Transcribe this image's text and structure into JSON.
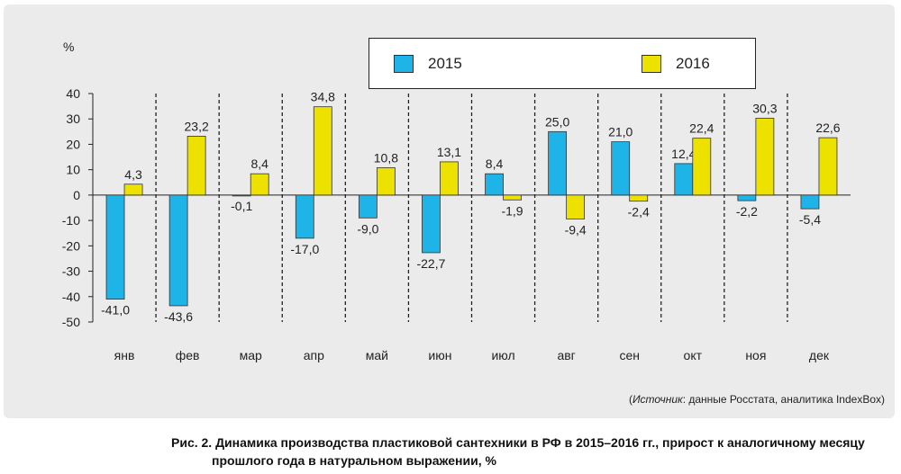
{
  "chart_data": {
    "type": "bar",
    "unit_label": "%",
    "categories": [
      "янв",
      "фев",
      "мар",
      "апр",
      "май",
      "июн",
      "июл",
      "авг",
      "сен",
      "окт",
      "ноя",
      "дек"
    ],
    "series": [
      {
        "name": "2015",
        "color": "#1eb4e8",
        "values": [
          -41.0,
          -43.6,
          -0.1,
          -17.0,
          -9.0,
          -22.7,
          8.4,
          25.0,
          21.0,
          12.4,
          -2.2,
          -5.4
        ],
        "labels": [
          "-41,0",
          "-43,6",
          "-0,1",
          "-17,0",
          "-9,0",
          "-22,7",
          "8,4",
          "25,0",
          "21,0",
          "12,4",
          "-2,2",
          "-5,4"
        ]
      },
      {
        "name": "2016",
        "color": "#ede100",
        "values": [
          4.3,
          23.2,
          8.4,
          34.8,
          10.8,
          13.1,
          -1.9,
          -9.4,
          -2.4,
          22.4,
          30.3,
          22.6
        ],
        "labels": [
          "4,3",
          "23,2",
          "8,4",
          "34,8",
          "10,8",
          "13,1",
          "-1,9",
          "-9,4",
          "-2,4",
          "22,4",
          "30,3",
          "22,6"
        ]
      }
    ],
    "ylim": [
      -50,
      40
    ],
    "yticks": [
      40,
      30,
      20,
      10,
      0,
      -10,
      -20,
      -30,
      -40,
      -50
    ],
    "legend": "top-center",
    "grid": false
  },
  "source_prefix": "(",
  "source_italic": "Источник",
  "source_rest": ": данные Росстата, аналитика IndexBox)",
  "caption_line1": "Рис. 2. Динамика производства пластиковой сантехники в РФ в 2015–2016 гг., прирост к аналогичному месяцу",
  "caption_line2": "прошлого года в натуральном выражении, %"
}
